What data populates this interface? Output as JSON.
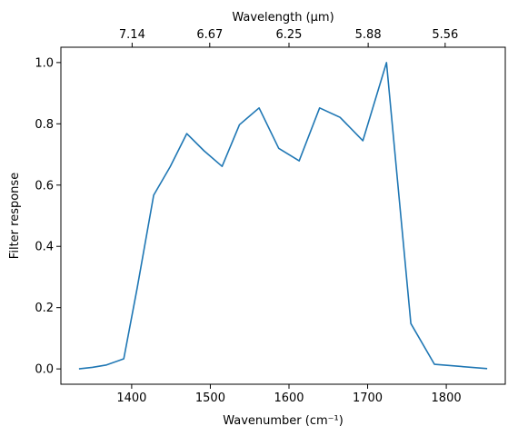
{
  "chart_data": {
    "type": "line",
    "title": "",
    "xlabel": "Wavenumber (cm⁻¹)",
    "ylabel": "Filter response",
    "secondary_xlabel": "Wavelength (μm)",
    "xlim": [
      1310,
      1875
    ],
    "ylim": [
      -0.05,
      1.05
    ],
    "xticks": [
      1400,
      1500,
      1600,
      1700,
      1800
    ],
    "yticks": [
      0.0,
      0.2,
      0.4,
      0.6,
      0.8,
      1.0
    ],
    "secondary_xticks": [
      7.14,
      6.67,
      6.25,
      5.88,
      5.56
    ],
    "grid": false,
    "series": [
      {
        "color": "#1f77b4",
        "x": [
          1333,
          1350,
          1368,
          1390,
          1407,
          1428,
          1449,
          1470,
          1492,
          1515,
          1537,
          1562,
          1587,
          1613,
          1639,
          1665,
          1694,
          1724,
          1755,
          1785,
          1852
        ],
        "y": [
          0.0,
          0.005,
          0.013,
          0.033,
          0.265,
          0.567,
          0.66,
          0.768,
          0.712,
          0.661,
          0.797,
          0.852,
          0.72,
          0.679,
          0.852,
          0.821,
          0.745,
          1.0,
          0.148,
          0.015,
          0.001
        ]
      }
    ]
  }
}
